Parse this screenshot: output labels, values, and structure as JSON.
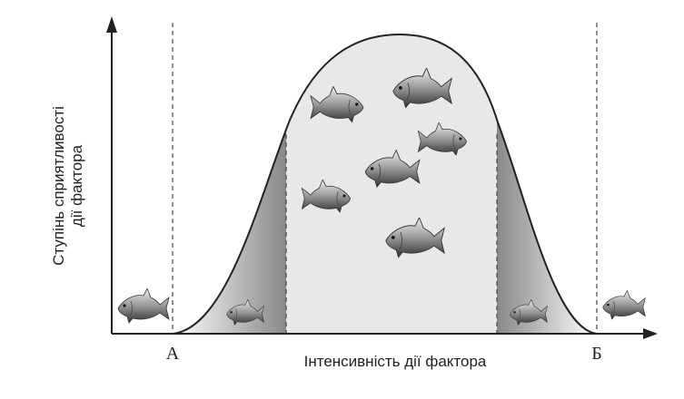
{
  "y_axis_label": [
    "Ступінь сприятливості",
    "дії фактора"
  ],
  "x_axis_label": "Інтенсивність дії фактора",
  "point_a": "А",
  "point_b": "Б"
}
